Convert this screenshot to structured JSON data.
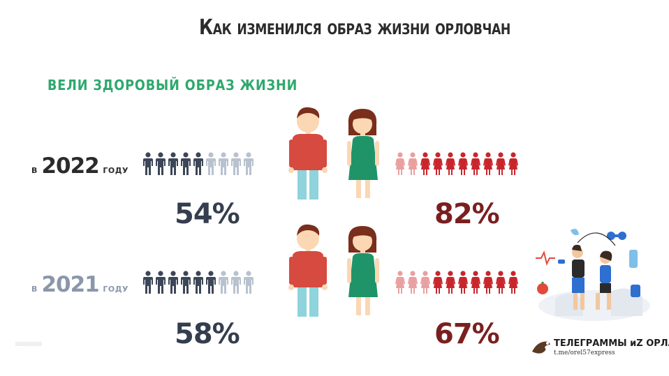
{
  "title": "Как изменился образ жизни орловчан",
  "subtitle": "вели здоровый образ жизни",
  "rows": [
    {
      "year_prefix": "в",
      "year": "2022",
      "year_suffix": "году",
      "male_percent": "54%",
      "female_percent": "82%",
      "male_share": 0.54,
      "female_share": 0.82,
      "male_icons_filled": 5,
      "male_icons_total": 9,
      "female_icons_filled": 8,
      "female_icons_total": 10
    },
    {
      "year_prefix": "в",
      "year": "2021",
      "year_suffix": "году",
      "male_percent": "58%",
      "female_percent": "67%",
      "male_share": 0.58,
      "female_share": 0.67,
      "male_icons_filled": 6,
      "male_icons_total": 9,
      "female_icons_filled": 7,
      "female_icons_total": 10
    }
  ],
  "colors": {
    "male_filled": "#3c4657",
    "male_empty": "#b8c2cf",
    "female_filled": "#c8262c",
    "female_empty": "#e9a0a0",
    "man_shirt": "#d64a3f",
    "man_pants": "#8fd3dc",
    "woman_dress": "#1f9469",
    "hair": "#7a2e1c",
    "skin": "#fbd7b4"
  },
  "watermark": {
    "name": "ТЕЛЕГРАММЫ иZ ОРЛА",
    "link": "t.me/orel57express"
  }
}
